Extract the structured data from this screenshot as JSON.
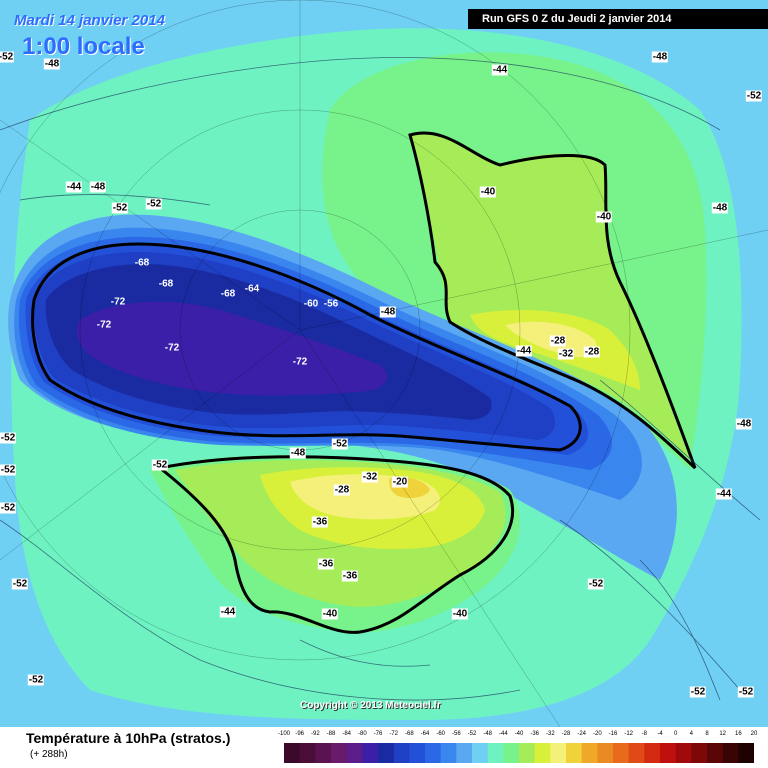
{
  "header": {
    "date": "Mardi 14 janvier 2014",
    "local_time": "1:00 locale",
    "run": "Run GFS 0 Z du Jeudi 2 janvier 2014"
  },
  "copyright": "Copyright © 2013 Meteociel.fr",
  "footer": {
    "title": "Température à 10hPa (stratos.)",
    "subtitle": "(+ 288h)"
  },
  "colors": {
    "-96": "#3b0a2a",
    "-92": "#4a0e38",
    "-88": "#5a1250",
    "-84": "#6a1a6a",
    "-80": "#5b1d8a",
    "-76": "#3c1fa8",
    "-72": "#1a2aa0",
    "-68": "#1f3fc4",
    "-64": "#2350d8",
    "-60": "#2a68e6",
    "-56": "#3a86ef",
    "-52": "#5aa7f2",
    "-48": "#6fd0f4",
    "-44": "#6ef2c2",
    "-40": "#78f28a",
    "-36": "#a6ec58",
    "-32": "#d8f03a",
    "-28": "#f4f07a",
    "-24": "#f0d23a",
    "-20": "#f0a828",
    "-16": "#ea8a22",
    "-12": "#e86a1c",
    "-8": "#e04a16",
    "-4": "#d42a12",
    "0": "#c0100e",
    "4": "#a00a0a",
    "8": "#7e0808",
    "12": "#5a0606",
    "16": "#3a0404",
    "20": "#1e0202"
  },
  "scale": [
    "-100",
    "-96",
    "-92",
    "-88",
    "-84",
    "-80",
    "-76",
    "-72",
    "-68",
    "-64",
    "-60",
    "-56",
    "-52",
    "-48",
    "-44",
    "-40",
    "-36",
    "-32",
    "-28",
    "-24",
    "-20",
    "-16",
    "-12",
    "-8",
    "-4",
    "0",
    "4",
    "8",
    "12",
    "16",
    "20"
  ],
  "map_labels": [
    "-48",
    "-44",
    "-44",
    "-48",
    "-52",
    "-52",
    "-48",
    "-40",
    "-40",
    "-48",
    "-68",
    "-68",
    "-68",
    "-64",
    "-60",
    "-56",
    "-48",
    "-72",
    "-72",
    "-72",
    "-72",
    "-28",
    "-32",
    "-28",
    "-44",
    "-52",
    "-48",
    "-52",
    "-28",
    "-32",
    "-20",
    "-36",
    "-36",
    "-36",
    "-44",
    "-40",
    "-40",
    "-52",
    "-52",
    "-52",
    "-52",
    "-52",
    "-52",
    "-52",
    "-48",
    "-44",
    "-52",
    "-52",
    "-52"
  ]
}
